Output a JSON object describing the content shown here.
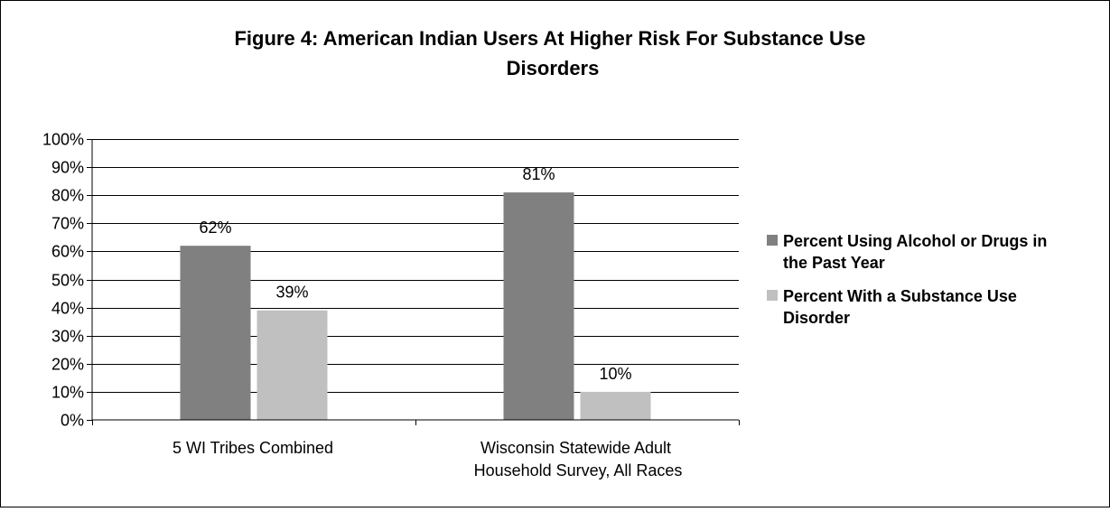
{
  "chart_data": {
    "type": "bar",
    "title": "Figure 4: American Indian Users At Higher Risk For Substance Use Disorders",
    "title_lines": [
      "Figure 4: American Indian Users At Higher Risk For Substance Use",
      "Disorders"
    ],
    "categories": [
      "5 WI Tribes Combined",
      "Wisconsin Statewide Adult Household Survey, All Races"
    ],
    "category_lines": [
      [
        "5 WI Tribes Combined"
      ],
      [
        "Wisconsin Statewide Adult",
        "Household Survey, All Races"
      ]
    ],
    "series": [
      {
        "name": "Percent Using Alcohol or Drugs in the Past Year",
        "name_lines": [
          "Percent Using Alcohol or Drugs in",
          "the Past Year"
        ],
        "values": [
          62,
          81
        ],
        "labels": [
          "62%",
          "81%"
        ],
        "color": "#808080"
      },
      {
        "name": "Percent With a Substance Use Disorder",
        "name_lines": [
          "Percent With a Substance Use",
          "Disorder"
        ],
        "values": [
          39,
          10
        ],
        "labels": [
          "39%",
          "10%"
        ],
        "color": "#c0c0c0"
      }
    ],
    "ylim": [
      0,
      100
    ],
    "yticks": [
      "0%",
      "10%",
      "20%",
      "30%",
      "40%",
      "50%",
      "60%",
      "70%",
      "80%",
      "90%",
      "100%"
    ],
    "grid": true,
    "legend_position": "right",
    "xlabel": "",
    "ylabel": ""
  }
}
